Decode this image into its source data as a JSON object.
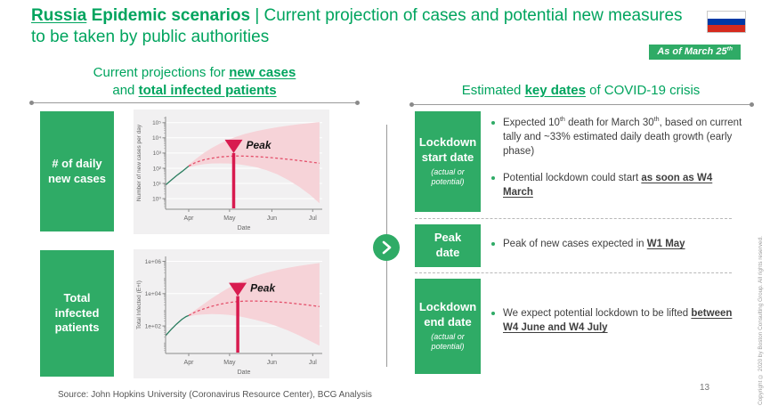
{
  "slide": {
    "title_segments": [
      {
        "t": "Russia",
        "b": true,
        "u": true
      },
      {
        "t": " Epidemic scenarios",
        "b": true
      },
      {
        "t": " | Current projection of cases and potential new measures to be taken by public authorities"
      }
    ],
    "as_of_badge": [
      {
        "t": "As of March 25"
      },
      {
        "t": "th",
        "sup": true
      }
    ],
    "flag_colors": {
      "top": "#ffffff",
      "middle": "#0039a6",
      "bottom": "#d52b1e"
    },
    "page_number": "13",
    "source": "Source: John Hopkins University (Coronavirus Resource Center), BCG Analysis",
    "copyright": "Copyright © 2020 by Boston Consulting Group. All rights reserved."
  },
  "colors": {
    "brand_green": "#2fab66",
    "text_green": "#00a45e",
    "peak_marker": "#d81b4f",
    "projection_line": "#e4506b",
    "confidence_band": "#f6d3d8",
    "actual_line": "#2a7d5f"
  },
  "left_panel": {
    "header_segments": [
      {
        "t": "Current projections for "
      },
      {
        "t": "new cases",
        "b": true,
        "u": true
      },
      {
        "br": true
      },
      {
        "t": "and "
      },
      {
        "t": "total infected patients",
        "b": true,
        "u": true
      }
    ],
    "rows": [
      {
        "label": "# of daily new cases"
      },
      {
        "label": "Total infected patients"
      }
    ]
  },
  "right_panel": {
    "header_segments": [
      {
        "t": "Estimated "
      },
      {
        "t": "key dates",
        "b": true,
        "u": true
      },
      {
        "t": " of COVID-19 crisis"
      }
    ],
    "rows": [
      {
        "box_title": "Lockdown start date",
        "box_subtitle": "(actual or potential)",
        "bullets": [
          [
            {
              "t": "Expected 10"
            },
            {
              "t": "th",
              "sup": true
            },
            {
              "t": " death for March 30"
            },
            {
              "t": "th",
              "sup": true
            },
            {
              "t": ", based on current tally and ~33% estimated daily death growth (early phase)"
            }
          ],
          [
            {
              "t": "Potential lockdown could start "
            },
            {
              "t": "as soon as W4 March",
              "b": true,
              "u": true
            }
          ]
        ]
      },
      {
        "box_title": "Peak date",
        "box_subtitle": "",
        "bullets": [
          [
            {
              "t": "Peak of new cases expected in "
            },
            {
              "t": "W1 May",
              "b": true,
              "u": true
            }
          ]
        ]
      },
      {
        "box_title": "Lockdown end date",
        "box_subtitle": "(actual or potential)",
        "bullets": [
          [
            {
              "t": "We expect potential lockdown to be lifted "
            },
            {
              "t": "between W4 June and W4 July",
              "b": true,
              "u": true
            }
          ]
        ]
      }
    ]
  },
  "chart_data": [
    {
      "type": "line",
      "title": "",
      "ylabel": "Number of new cases per day",
      "xlabel": "Date",
      "yscale": "log",
      "ymin": 0.2,
      "ymax": 250000,
      "yticks": [
        {
          "v": 100000,
          "label": "10⁵"
        },
        {
          "v": 10000,
          "label": "10⁴"
        },
        {
          "v": 1000,
          "label": "10³"
        },
        {
          "v": 100,
          "label": "10²"
        },
        {
          "v": 10,
          "label": "10¹"
        },
        {
          "v": 1,
          "label": "10⁰"
        }
      ],
      "x_domain_days": [
        0,
        115
      ],
      "xticks": [
        {
          "v": 17,
          "label": "Apr"
        },
        {
          "v": 47,
          "label": "May"
        },
        {
          "v": 78,
          "label": "Jun"
        },
        {
          "v": 108,
          "label": "Jul"
        }
      ],
      "band": {
        "name": "confidence-band",
        "color": "#f6d3d8",
        "upper": [
          [
            17,
            170
          ],
          [
            22,
            400
          ],
          [
            28,
            1000
          ],
          [
            34,
            2200
          ],
          [
            40,
            4200
          ],
          [
            46,
            7500
          ],
          [
            52,
            12000
          ],
          [
            58,
            18000
          ],
          [
            66,
            27000
          ],
          [
            74,
            38000
          ],
          [
            82,
            50000
          ],
          [
            90,
            64000
          ],
          [
            98,
            79000
          ],
          [
            106,
            95000
          ],
          [
            113,
            110000
          ]
        ],
        "lower": [
          [
            17,
            115
          ],
          [
            22,
            150
          ],
          [
            28,
            185
          ],
          [
            34,
            205
          ],
          [
            40,
            210
          ],
          [
            46,
            205
          ],
          [
            52,
            190
          ],
          [
            58,
            160
          ],
          [
            66,
            120
          ],
          [
            74,
            75
          ],
          [
            82,
            40
          ],
          [
            90,
            17
          ],
          [
            98,
            6
          ],
          [
            106,
            1.8
          ],
          [
            113,
            0.5
          ]
        ]
      },
      "series": [
        {
          "name": "actual-cases",
          "style": "solid",
          "color": "#2a7d5f",
          "points": [
            [
              0,
              8
            ],
            [
              4,
              16
            ],
            [
              8,
              32
            ],
            [
              12,
              60
            ],
            [
              15,
              100
            ],
            [
              17,
              140
            ]
          ]
        },
        {
          "name": "projection-median",
          "style": "dashed",
          "color": "#e4506b",
          "points": [
            [
              17,
              140
            ],
            [
              22,
              240
            ],
            [
              28,
              360
            ],
            [
              34,
              460
            ],
            [
              40,
              550
            ],
            [
              46,
              610
            ],
            [
              52,
              640
            ],
            [
              58,
              630
            ],
            [
              66,
              590
            ],
            [
              74,
              530
            ],
            [
              82,
              460
            ],
            [
              90,
              390
            ],
            [
              98,
              320
            ],
            [
              106,
              260
            ],
            [
              113,
              215
            ]
          ]
        }
      ],
      "peak_marker": {
        "x": 50,
        "line_top": 1000,
        "label": "Peak",
        "color": "#d81b4f"
      }
    },
    {
      "type": "line",
      "title": "",
      "ylabel": "Total Infected (E+I)",
      "xlabel": "Date",
      "yscale": "log",
      "ymin": 2,
      "ymax": 2000000,
      "yticks": [
        {
          "v": 1000000,
          "label": "1e+06"
        },
        {
          "v": 10000,
          "label": "1e+04"
        },
        {
          "v": 100,
          "label": "1e+02"
        }
      ],
      "x_domain_days": [
        0,
        115
      ],
      "xticks": [
        {
          "v": 17,
          "label": "Apr"
        },
        {
          "v": 47,
          "label": "May"
        },
        {
          "v": 78,
          "label": "Jun"
        },
        {
          "v": 108,
          "label": "Jul"
        }
      ],
      "band": {
        "name": "confidence-band",
        "color": "#f6d3d8",
        "upper": [
          [
            17,
            520
          ],
          [
            22,
            1000
          ],
          [
            28,
            2300
          ],
          [
            34,
            5200
          ],
          [
            40,
            11000
          ],
          [
            46,
            22000
          ],
          [
            52,
            42000
          ],
          [
            58,
            72000
          ],
          [
            66,
            125000
          ],
          [
            74,
            200000
          ],
          [
            82,
            290000
          ],
          [
            90,
            400000
          ],
          [
            98,
            520000
          ],
          [
            106,
            650000
          ],
          [
            113,
            780000
          ]
        ],
        "lower": [
          [
            17,
            400
          ],
          [
            22,
            470
          ],
          [
            28,
            520
          ],
          [
            34,
            540
          ],
          [
            40,
            530
          ],
          [
            46,
            490
          ],
          [
            52,
            420
          ],
          [
            58,
            340
          ],
          [
            66,
            240
          ],
          [
            74,
            160
          ],
          [
            82,
            95
          ],
          [
            90,
            52
          ],
          [
            98,
            26
          ],
          [
            106,
            12
          ],
          [
            113,
            6
          ]
        ]
      },
      "series": [
        {
          "name": "actual-infected",
          "style": "solid",
          "color": "#2a7d5f",
          "points": [
            [
              0,
              25
            ],
            [
              4,
              60
            ],
            [
              8,
              130
            ],
            [
              12,
              260
            ],
            [
              15,
              380
            ],
            [
              17,
              450
            ]
          ]
        },
        {
          "name": "projection-median",
          "style": "dashed",
          "color": "#e4506b",
          "points": [
            [
              17,
              450
            ],
            [
              22,
              750
            ],
            [
              28,
              1150
            ],
            [
              34,
              1650
            ],
            [
              40,
              2200
            ],
            [
              46,
              2750
            ],
            [
              52,
              3200
            ],
            [
              58,
              3450
            ],
            [
              64,
              3500
            ],
            [
              72,
              3400
            ],
            [
              80,
              3150
            ],
            [
              88,
              2800
            ],
            [
              96,
              2400
            ],
            [
              104,
              2000
            ],
            [
              113,
              1600
            ]
          ]
        }
      ],
      "peak_marker": {
        "x": 53,
        "line_top": 7000,
        "label": "Peak",
        "color": "#d81b4f"
      }
    }
  ]
}
